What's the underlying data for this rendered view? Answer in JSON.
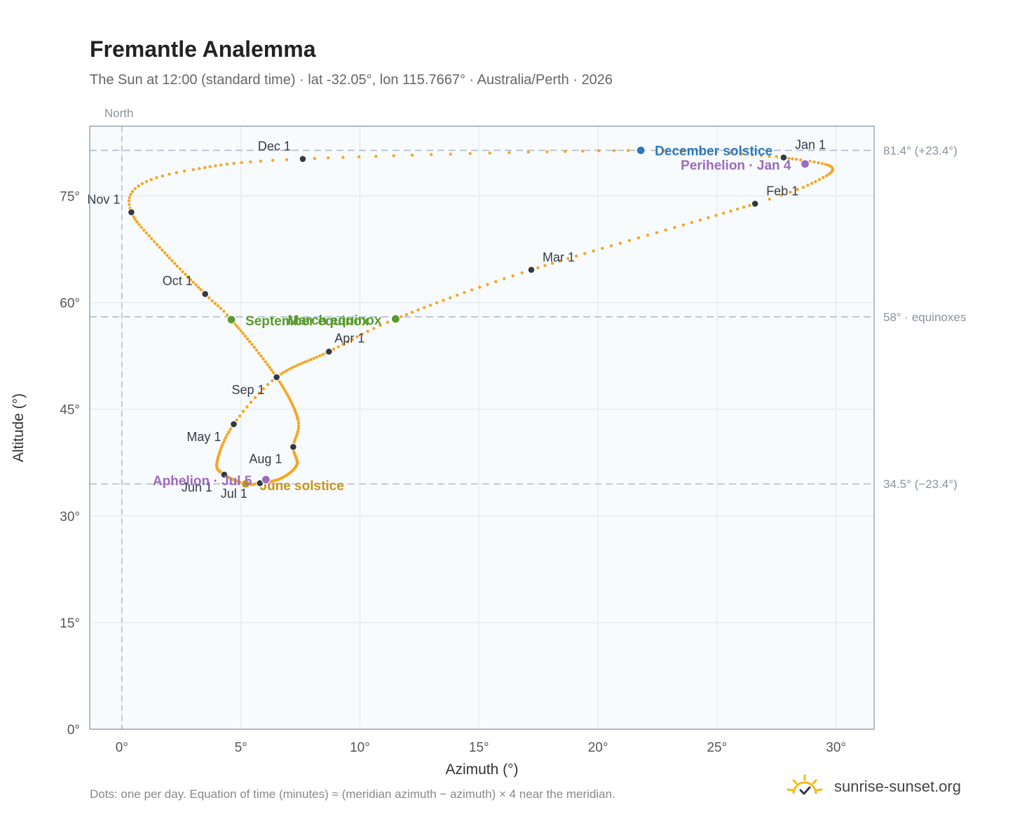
{
  "header": {
    "title": "Fremantle Analemma",
    "subtitle": "The Sun at 12:00 (standard time) · lat -32.05°, lon 115.7667° · Australia/Perth · 2026"
  },
  "footer": {
    "note": "Dots: one per day. Equation of time (minutes) ≈ (meridian azimuth − azimuth) × 4 near the meridian.",
    "brand": "sunrise-sunset.org",
    "brand_icon": "sun-icon"
  },
  "chart_data": {
    "type": "scatter",
    "xlabel": "Azimuth (°)",
    "ylabel": "Altitude (°)",
    "xlim": [
      -1.35,
      31.6
    ],
    "ylim": [
      0,
      84.8
    ],
    "x_ticks": [
      0,
      5,
      10,
      15,
      20,
      25,
      30
    ],
    "x_tick_labels": [
      "0°",
      "5°",
      "10°",
      "15°",
      "20°",
      "25°",
      "30°"
    ],
    "y_ticks": [
      0,
      15,
      30,
      45,
      60,
      75
    ],
    "y_tick_labels": [
      "0°",
      "15°",
      "30°",
      "45°",
      "60°",
      "75°"
    ],
    "grid": true,
    "meridian": {
      "x": 0,
      "label": "North"
    },
    "reference_lines": [
      {
        "y": 81.4,
        "label": "81.4° (+23.4°)"
      },
      {
        "y": 58.0,
        "label": "58° · equinoxes"
      },
      {
        "y": 34.5,
        "label": "34.5° (−23.4°)"
      }
    ],
    "colors": {
      "daily_dots": "#f5a623",
      "month_markers": "#333a44",
      "equinox": "#5a9a2f",
      "december_solstice": "#2f78b8",
      "june_solstice": "#c8951a",
      "apsides": "#9b6bbd",
      "reference_line": "#b0bcc8",
      "plot_background": "#f8fbfd"
    },
    "daily_path_knots": [
      {
        "doy": 1,
        "x": 27.8,
        "y": 80.4
      },
      {
        "doy": 14,
        "x": 29.75,
        "y": 79.2
      },
      {
        "doy": 23,
        "x": 29.3,
        "y": 77.3
      },
      {
        "doy": 32,
        "x": 26.6,
        "y": 73.9
      },
      {
        "doy": 60,
        "x": 17.2,
        "y": 64.6
      },
      {
        "doy": 79,
        "x": 11.5,
        "y": 57.7
      },
      {
        "doy": 91,
        "x": 8.7,
        "y": 53.1
      },
      {
        "doy": 110,
        "x": 6.5,
        "y": 49.5
      },
      {
        "doy": 121,
        "x": 4.7,
        "y": 42.9
      },
      {
        "doy": 137,
        "x": 4.0,
        "y": 37.6
      },
      {
        "doy": 152,
        "x": 4.3,
        "y": 35.8
      },
      {
        "doy": 164,
        "x": 5.2,
        "y": 34.5
      },
      {
        "doy": 172,
        "x": 5.8,
        "y": 34.6
      },
      {
        "doy": 186,
        "x": 6.7,
        "y": 35.3
      },
      {
        "doy": 200,
        "x": 7.35,
        "y": 37.2
      },
      {
        "doy": 213,
        "x": 7.2,
        "y": 39.7
      },
      {
        "doy": 224,
        "x": 7.4,
        "y": 43.5
      },
      {
        "doy": 244,
        "x": 6.5,
        "y": 49.5
      },
      {
        "doy": 266,
        "x": 4.6,
        "y": 57.6
      },
      {
        "doy": 274,
        "x": 3.5,
        "y": 61.2
      },
      {
        "doy": 290,
        "x": 1.8,
        "y": 67.0
      },
      {
        "doy": 305,
        "x": 0.4,
        "y": 72.7
      },
      {
        "doy": 313,
        "x": 0.7,
        "y": 76.4
      },
      {
        "doy": 322,
        "x": 3.0,
        "y": 78.7
      },
      {
        "doy": 335,
        "x": 7.6,
        "y": 80.2
      },
      {
        "doy": 355,
        "x": 21.8,
        "y": 81.4
      },
      {
        "doy": 365,
        "x": 27.5,
        "y": 80.5
      }
    ],
    "month_markers": [
      {
        "label": "Jan 1",
        "x": 27.8,
        "y": 80.4
      },
      {
        "label": "Feb 1",
        "x": 26.6,
        "y": 73.9
      },
      {
        "label": "Mar 1",
        "x": 17.2,
        "y": 64.6
      },
      {
        "label": "Apr 1",
        "x": 8.7,
        "y": 53.1
      },
      {
        "label": "May 1",
        "x": 4.7,
        "y": 42.9
      },
      {
        "label": "Jun 1",
        "x": 4.3,
        "y": 35.8
      },
      {
        "label": "Jul 1",
        "x": 5.8,
        "y": 34.6
      },
      {
        "label": "Aug 1",
        "x": 7.2,
        "y": 39.7
      },
      {
        "label": "Sep 1",
        "x": 6.5,
        "y": 49.5
      },
      {
        "label": "Oct 1",
        "x": 3.5,
        "y": 61.2
      },
      {
        "label": "Nov 1",
        "x": 0.4,
        "y": 72.7
      },
      {
        "label": "Dec 1",
        "x": 7.6,
        "y": 80.2
      }
    ],
    "events": [
      {
        "label": "December solstice",
        "x": 21.8,
        "y": 81.4,
        "kind": "december_solstice"
      },
      {
        "label": "Perihelion · Jan 4",
        "x": 28.7,
        "y": 79.5,
        "kind": "apsides"
      },
      {
        "label": "March equinox",
        "x": 11.5,
        "y": 57.7,
        "kind": "equinox"
      },
      {
        "label": "September equinox",
        "x": 4.6,
        "y": 57.6,
        "kind": "equinox"
      },
      {
        "label": "June solstice",
        "x": 5.2,
        "y": 34.5,
        "kind": "june_solstice"
      },
      {
        "label": "Aphelion · Jul 5",
        "x": 6.05,
        "y": 35.1,
        "kind": "apsides"
      }
    ]
  }
}
